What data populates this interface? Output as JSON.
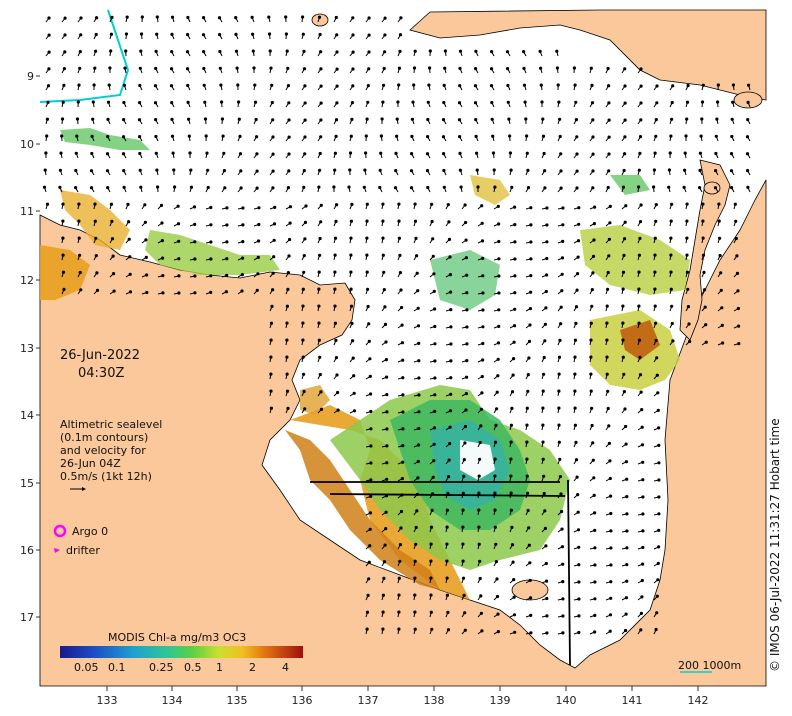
{
  "map": {
    "date": "26-Jun-2022",
    "time": "04:30Z",
    "altimetry_lines": [
      "Altimetric sealevel",
      "(0.1m contours)",
      "and velocity for",
      "26-Jun 04Z",
      "0.5m/s (1kt 12h)"
    ],
    "legend": {
      "argo": "Argo 0",
      "drifter": "drifter"
    },
    "colorbar": {
      "title": "MODIS Chl-a mg/m3 OC3",
      "ticks": [
        "0.05",
        "0.1",
        "0.25",
        "0.5",
        "1",
        "2",
        "4"
      ]
    },
    "scale_bar": "200  1000m",
    "credit": "© IMOS 06-Jul-2022 11:31:27 Hobart time",
    "lon_ticks": [
      "133",
      "134",
      "135",
      "136",
      "137",
      "138",
      "139",
      "140",
      "141",
      "142"
    ],
    "lat_ticks": [
      "9",
      "10",
      "11",
      "12",
      "13",
      "14",
      "15",
      "16",
      "17"
    ],
    "colors": {
      "land": "#fac89a",
      "sea": "#ffffff",
      "argo": "#ff00ff",
      "drifter": "#ff00ff",
      "bathy_contour": "#00d0d0"
    }
  }
}
